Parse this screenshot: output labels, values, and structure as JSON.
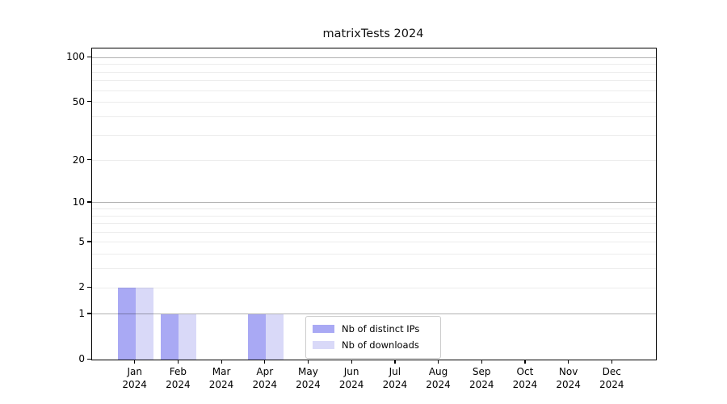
{
  "chart_data": {
    "type": "bar",
    "title": "matrixTests 2024",
    "categories": [
      "Jan",
      "Feb",
      "Mar",
      "Apr",
      "May",
      "Jun",
      "Jul",
      "Aug",
      "Sep",
      "Oct",
      "Nov",
      "Dec"
    ],
    "year": "2024",
    "series": [
      {
        "name": "Nb of distinct IPs",
        "color": "#a9a9f4",
        "values": [
          2,
          1,
          0,
          1,
          0,
          0,
          0,
          0,
          0,
          0,
          0,
          0
        ]
      },
      {
        "name": "Nb of downloads",
        "color": "#d9d9f8",
        "values": [
          2,
          1,
          0,
          1,
          0,
          0,
          0,
          0,
          0,
          0,
          0,
          0
        ]
      }
    ],
    "xlabel": "",
    "ylabel": "",
    "yscale": "log1p",
    "ytick_labels": [
      "100",
      "50",
      "20",
      "10",
      "5",
      "2",
      "1",
      "0"
    ],
    "ytick_values": [
      100,
      50,
      20,
      10,
      5,
      2,
      1,
      0
    ],
    "major_gridline_values": [
      1,
      10,
      100
    ],
    "minor_gridline_values": [
      2,
      3,
      4,
      5,
      6,
      7,
      8,
      9,
      20,
      30,
      40,
      50,
      60,
      70,
      80,
      90
    ],
    "ylim": [
      0,
      115
    ],
    "grid": true,
    "legend_position": "lower center",
    "colors": {
      "axis": "#000000",
      "major_grid": "#b0b0b0",
      "minor_grid": "#ebebeb",
      "background": "#ffffff"
    }
  }
}
